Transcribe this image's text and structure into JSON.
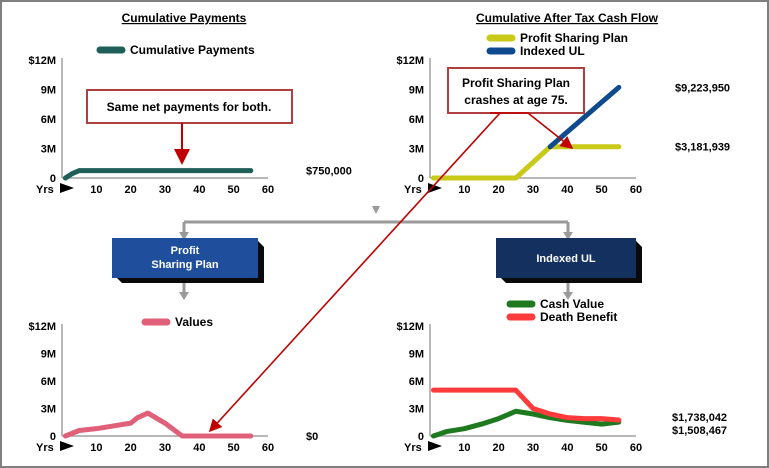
{
  "chart_data": [
    {
      "id": "cumulative-payments",
      "type": "line",
      "title": "Cumulative Payments",
      "x_label": "Yrs",
      "x_ticks": [
        "10",
        "20",
        "30",
        "40",
        "50",
        "60"
      ],
      "xlim": [
        0,
        60
      ],
      "y_ticks": [
        "$12M",
        "9M",
        "6M",
        "3M",
        "0"
      ],
      "ylim": [
        0,
        12
      ],
      "series": [
        {
          "name": "Cumulative Payments",
          "color": "#1e5f5a",
          "x": [
            1,
            3,
            5,
            55
          ],
          "y": [
            0.0,
            0.45,
            0.75,
            0.75
          ],
          "end_label": "$750,000"
        }
      ],
      "callout": "Same net payments for both."
    },
    {
      "id": "cumulative-after-tax-cash-flow",
      "type": "line",
      "title": "Cumulative After Tax Cash Flow",
      "x_label": "Yrs",
      "x_ticks": [
        "10",
        "20",
        "30",
        "40",
        "50",
        "60"
      ],
      "xlim": [
        0,
        60
      ],
      "y_ticks": [
        "$12M",
        "9M",
        "6M",
        "3M",
        "0"
      ],
      "ylim": [
        0,
        12
      ],
      "series": [
        {
          "name": "Profit Sharing Plan",
          "color": "#c9c919",
          "x": [
            1,
            25,
            35,
            55
          ],
          "y": [
            0,
            0,
            3.18,
            3.18
          ],
          "end_label": "$3,181,939"
        },
        {
          "name": "Indexed UL",
          "color": "#104a8e",
          "x": [
            35,
            55
          ],
          "y": [
            3.18,
            9.22
          ],
          "end_label": "$9,223,950"
        }
      ],
      "callout": "Profit Sharing Plan crashes at age 75."
    },
    {
      "id": "profit-sharing-plan-values",
      "type": "line",
      "x_label": "Yrs",
      "x_ticks": [
        "10",
        "20",
        "30",
        "40",
        "50",
        "60"
      ],
      "xlim": [
        0,
        60
      ],
      "y_ticks": [
        "$12M",
        "9M",
        "6M",
        "3M",
        "0"
      ],
      "ylim": [
        0,
        12
      ],
      "series": [
        {
          "name": "Values",
          "color": "#e0607a",
          "x": [
            1,
            5,
            10,
            15,
            20,
            22,
            25,
            30,
            35,
            40,
            45,
            50,
            55
          ],
          "y": [
            0,
            0.6,
            0.8,
            1.1,
            1.4,
            2.0,
            2.5,
            1.4,
            0,
            0,
            0,
            0,
            0
          ],
          "end_label": "$0"
        }
      ]
    },
    {
      "id": "indexed-ul-values",
      "type": "line",
      "x_label": "Yrs",
      "x_ticks": [
        "10",
        "20",
        "30",
        "40",
        "50",
        "60"
      ],
      "xlim": [
        0,
        60
      ],
      "y_ticks": [
        "$12M",
        "9M",
        "6M",
        "3M",
        "0"
      ],
      "ylim": [
        0,
        12
      ],
      "series": [
        {
          "name": "Cash Value",
          "color": "#1f7a1f",
          "x": [
            1,
            5,
            10,
            15,
            20,
            25,
            30,
            35,
            40,
            45,
            50,
            55
          ],
          "y": [
            0,
            0.5,
            0.8,
            1.3,
            1.9,
            2.7,
            2.4,
            2.0,
            1.7,
            1.5,
            1.3,
            1.51
          ],
          "end_label": "$1,508,467"
        },
        {
          "name": "Death Benefit",
          "color": "#ff3b3b",
          "x": [
            1,
            5,
            10,
            15,
            20,
            25,
            30,
            35,
            40,
            45,
            50,
            55
          ],
          "y": [
            5.0,
            5.0,
            5.0,
            5.0,
            5.0,
            5.0,
            3.0,
            2.4,
            2.0,
            1.9,
            1.9,
            1.74
          ],
          "end_label": "$1,738,042"
        }
      ]
    }
  ],
  "flow": {
    "left_box": [
      "Profit",
      "Sharing Plan"
    ],
    "right_box": "Indexed UL"
  }
}
